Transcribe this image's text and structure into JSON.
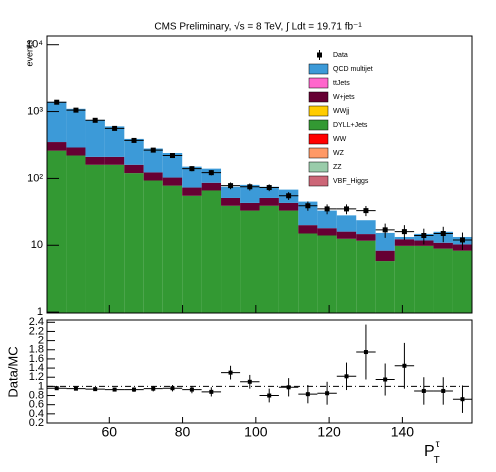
{
  "chart_data": {
    "type": "stacked_histogram",
    "title": "CMS Preliminary, √s = 8 TeV, ∫ Ldt = 19.71 fb⁻¹",
    "ylabel": "events",
    "xlabel": {
      "base": "P",
      "sub": "T",
      "sup": "τ"
    },
    "log_scale": true,
    "bins": [
      43,
      48.3,
      53.5,
      58.8,
      64.1,
      69.4,
      74.6,
      79.9,
      85.2,
      90.5,
      95.7,
      101,
      106.3,
      111.6,
      116.8,
      122.1,
      127.4,
      132.7,
      137.9,
      143.2,
      148.5,
      153.8,
      159
    ],
    "xlim": [
      43,
      159
    ],
    "xticks": [
      60,
      80,
      100,
      120,
      140
    ],
    "ylim": [
      0.97,
      13500
    ],
    "yticks": [
      1,
      10,
      {
        "value": 100,
        "label": "10²"
      },
      {
        "value": 1000,
        "label": "10³"
      },
      {
        "value": 10000,
        "label": "10⁴"
      }
    ],
    "legend": "top-right",
    "series": [
      {
        "name": "VBF_Higgs",
        "color": "#cc6677",
        "values": [
          0,
          0,
          0,
          0,
          0,
          0,
          0,
          0,
          0,
          0,
          0,
          0,
          0,
          0,
          0,
          0,
          0,
          0,
          0,
          0,
          0,
          0
        ]
      },
      {
        "name": "ZZ",
        "color": "#99ccaa",
        "values": [
          0,
          0,
          0,
          0,
          0,
          0,
          0,
          0,
          0,
          0,
          0,
          0,
          0,
          0,
          0,
          0,
          0,
          0,
          0,
          0,
          0,
          0
        ]
      },
      {
        "name": "WZ",
        "color": "#ff9966",
        "values": [
          0,
          0,
          0,
          0,
          0,
          0,
          0,
          0,
          0,
          0,
          0,
          0,
          0,
          0,
          0,
          0,
          0,
          0,
          0,
          0,
          0,
          0
        ]
      },
      {
        "name": "WW",
        "color": "#ff0000",
        "values": [
          0,
          0,
          0,
          0,
          0,
          0,
          0,
          0,
          0,
          0,
          0,
          0,
          0,
          0,
          0,
          0,
          0,
          0,
          0,
          0,
          0,
          0
        ]
      },
      {
        "name": "DYLL+Jets",
        "color": "#339933",
        "values": [
          260,
          220,
          160,
          160,
          120,
          93,
          78,
          55,
          66,
          39,
          33,
          39,
          33,
          15,
          14,
          12.5,
          11.7,
          5.8,
          9.8,
          9.8,
          8.9,
          8.3
        ]
      },
      {
        "name": "WWjj",
        "color": "#ffcc00",
        "values": [
          0,
          0,
          0,
          0,
          0,
          0,
          0,
          0,
          0,
          0,
          0,
          0,
          0,
          0,
          0,
          0,
          0,
          0,
          0,
          0,
          0,
          0
        ]
      },
      {
        "name": "W+jets",
        "color": "#660033",
        "values": [
          90,
          70,
          50,
          50,
          40,
          30,
          25,
          18,
          20,
          12,
          10,
          12,
          10,
          5,
          4,
          3.5,
          3,
          2.5,
          2.5,
          2,
          2,
          2
        ]
      },
      {
        "name": "ttJets",
        "color": "#ff66cc",
        "values": [
          0,
          0,
          0,
          0,
          0,
          0,
          0,
          0,
          0,
          0,
          0,
          0,
          0,
          0,
          0,
          0,
          0,
          0,
          0,
          0,
          0,
          0
        ]
      },
      {
        "name": "QCD multijet",
        "color": "#3c9ad8",
        "values": [
          1050,
          810,
          540,
          390,
          230,
          157,
          137,
          77,
          54,
          24,
          37,
          24,
          25,
          25,
          15,
          12,
          9,
          7,
          1,
          3,
          5,
          3
        ]
      }
    ],
    "data": {
      "name": "Data",
      "color": "#000000",
      "values": [
        1380,
        1050,
        740,
        560,
        370,
        265,
        220,
        140,
        122,
        78,
        75,
        73,
        55,
        39,
        35,
        35,
        33,
        17,
        16,
        14,
        15,
        12
      ],
      "errors": [
        37,
        32,
        27,
        24,
        19,
        16,
        15,
        12,
        11,
        9,
        9,
        8.5,
        7.4,
        6.2,
        5.9,
        5.9,
        5.7,
        4.1,
        4,
        3.7,
        3.9,
        3.5
      ]
    },
    "ratio": {
      "ylabel": "Data/MC",
      "ylim": [
        0.2,
        2.45
      ],
      "yticks": [
        0.2,
        0.4,
        0.6,
        0.8,
        1,
        1.2,
        1.4,
        1.6,
        1.8,
        2,
        2.2,
        2.4
      ],
      "values": [
        0.96,
        0.95,
        0.94,
        0.93,
        0.93,
        0.95,
        0.96,
        0.93,
        0.88,
        1.3,
        1.1,
        0.8,
        0.98,
        0.83,
        0.85,
        1.22,
        1.75,
        1.15,
        1.45,
        0.9,
        0.9,
        0.72
      ],
      "errors": [
        0.03,
        0.03,
        0.03,
        0.04,
        0.05,
        0.06,
        0.07,
        0.08,
        0.1,
        0.15,
        0.15,
        0.15,
        0.2,
        0.2,
        0.25,
        0.3,
        0.6,
        0.35,
        0.5,
        0.3,
        0.3,
        0.3
      ]
    }
  }
}
